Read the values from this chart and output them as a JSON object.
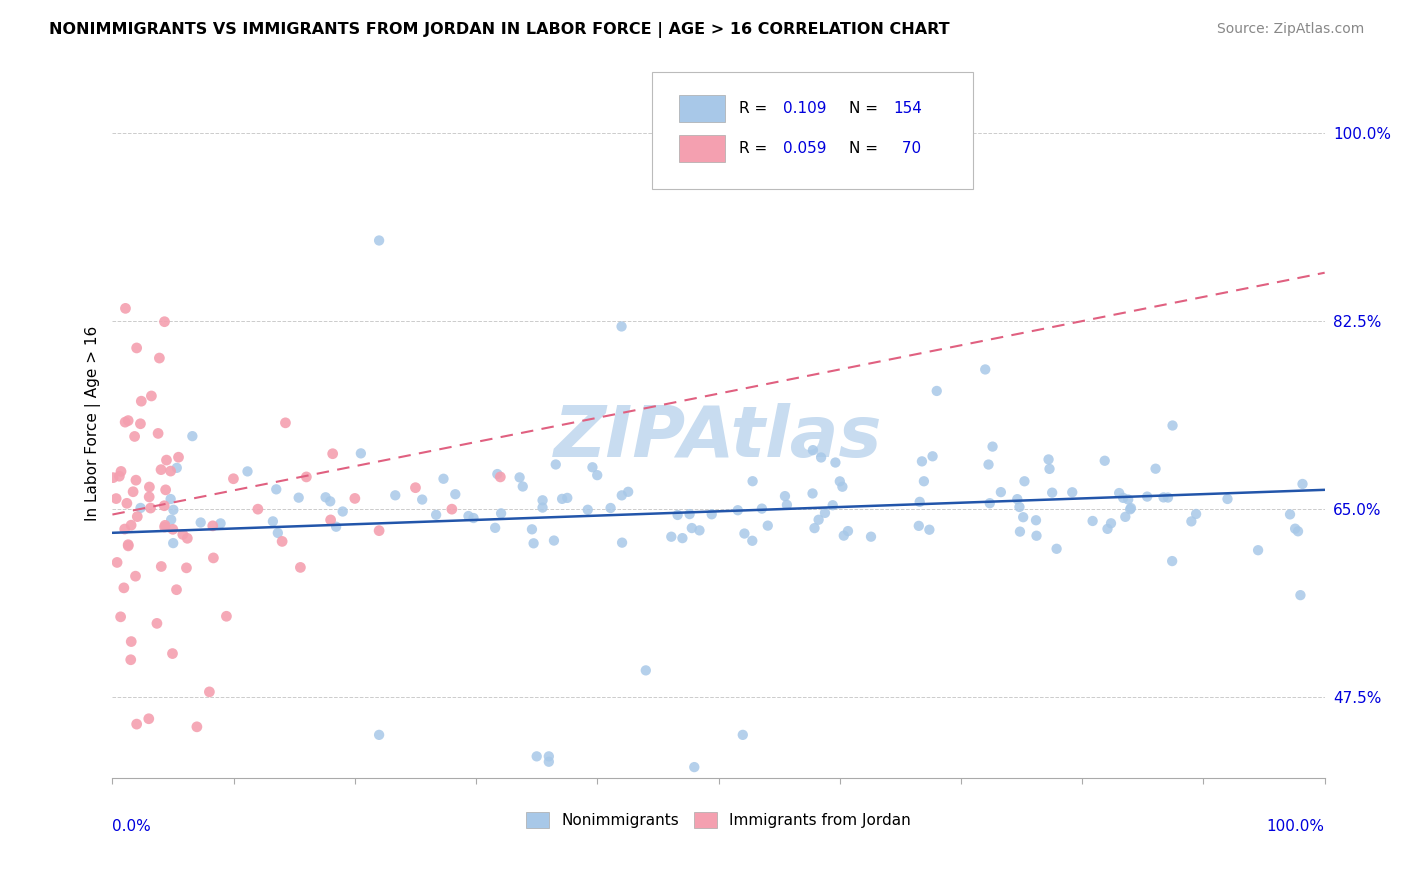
{
  "title": "NONIMMIGRANTS VS IMMIGRANTS FROM JORDAN IN LABOR FORCE | AGE > 16 CORRELATION CHART",
  "source": "Source: ZipAtlas.com",
  "ytick_labels": [
    "47.5%",
    "65.0%",
    "82.5%",
    "100.0%"
  ],
  "ytick_values": [
    0.475,
    0.65,
    0.825,
    1.0
  ],
  "xlim": [
    0.0,
    1.0
  ],
  "ylim": [
    0.4,
    1.06
  ],
  "blue_dot_color": "#A8C8E8",
  "pink_dot_color": "#F4A0B0",
  "blue_line_color": "#2255AA",
  "pink_line_color": "#E06080",
  "R_blue": 0.109,
  "N_blue": 154,
  "R_pink": 0.059,
  "N_pink": 70,
  "legend_text_color": "#0000DD",
  "watermark_color": "#C8DCF0",
  "background_color": "#FFFFFF",
  "grid_color": "#CCCCCC",
  "blue_trend_x0": 0.0,
  "blue_trend_y0": 0.628,
  "blue_trend_x1": 1.0,
  "blue_trend_y1": 0.668,
  "pink_trend_x0": 0.0,
  "pink_trend_y0": 0.645,
  "pink_trend_x1": 1.0,
  "pink_trend_y1": 0.87
}
